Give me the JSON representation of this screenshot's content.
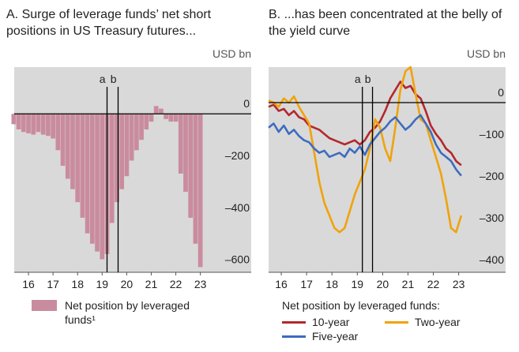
{
  "chart_data": [
    {
      "type": "bar",
      "title": "A. Surge of leverage funds’ net short positions in US Treasury futures...",
      "y_unit": "USD bn",
      "x": [
        2015.9,
        2016.1,
        2016.3,
        2016.5,
        2016.7,
        2016.9,
        2017.1,
        2017.3,
        2017.5,
        2017.7,
        2017.9,
        2018.1,
        2018.3,
        2018.5,
        2018.7,
        2018.9,
        2019.1,
        2019.3,
        2019.5,
        2019.7,
        2019.9,
        2020.1,
        2020.3,
        2020.5,
        2020.7,
        2020.9,
        2021.1,
        2021.3,
        2021.5,
        2021.7,
        2021.9,
        2022.1,
        2022.3,
        2022.5,
        2022.7,
        2022.9,
        2023.1,
        2023.3,
        2023.5
      ],
      "series": [
        {
          "name": "Net position by leveraged funds¹",
          "color": "#c98c9e",
          "values": [
            -40,
            -60,
            -70,
            -75,
            -80,
            -70,
            -80,
            -85,
            -95,
            -140,
            -200,
            -250,
            -290,
            -340,
            -400,
            -460,
            -500,
            -530,
            -560,
            -540,
            -420,
            -340,
            -290,
            -240,
            -180,
            -140,
            -100,
            -60,
            -30,
            30,
            20,
            -20,
            -30,
            -30,
            -230,
            -300,
            -400,
            -500,
            -590
          ]
        }
      ],
      "xlim": [
        2015.92,
        2025.57
      ],
      "xticks": [
        {
          "value": 2016.5,
          "label": "16"
        },
        {
          "value": 2017.5,
          "label": "17"
        },
        {
          "value": 2018.5,
          "label": "18"
        },
        {
          "value": 2019.5,
          "label": "19"
        },
        {
          "value": 2020.5,
          "label": "20"
        },
        {
          "value": 2021.5,
          "label": "21"
        },
        {
          "value": 2022.5,
          "label": "22"
        },
        {
          "value": 2023.5,
          "label": "23"
        }
      ],
      "ylim": [
        -610,
        180
      ],
      "yticks": [
        0,
        {
          "value": -200,
          "label": "–200"
        },
        {
          "value": -400,
          "label": "–400"
        },
        {
          "value": -600,
          "label": "–600"
        }
      ],
      "events": [
        {
          "label": "a",
          "x": 2019.7
        },
        {
          "label": "b",
          "x": 2020.15
        }
      ]
    },
    {
      "type": "line",
      "title": "B. ...has been concentrated at the belly of the yield curve",
      "y_unit": "USD bn",
      "legend_title": "Net position by leveraged funds:",
      "x": [
        2016.0,
        2016.2,
        2016.4,
        2016.6,
        2016.8,
        2017.0,
        2017.2,
        2017.4,
        2017.6,
        2017.8,
        2018.0,
        2018.2,
        2018.4,
        2018.6,
        2018.8,
        2019.0,
        2019.2,
        2019.4,
        2019.6,
        2019.8,
        2020.0,
        2020.2,
        2020.4,
        2020.6,
        2020.8,
        2021.0,
        2021.2,
        2021.4,
        2021.6,
        2021.8,
        2022.0,
        2022.2,
        2022.4,
        2022.6,
        2022.8,
        2023.0,
        2023.2,
        2023.4,
        2023.6
      ],
      "series": [
        {
          "name": "10-year",
          "color": "#b3282d",
          "values": [
            -10,
            -5,
            -20,
            -15,
            -30,
            -20,
            -35,
            -40,
            -55,
            -60,
            -65,
            -75,
            -85,
            -90,
            -95,
            -100,
            -95,
            -90,
            -100,
            -90,
            -70,
            -60,
            -45,
            -20,
            10,
            30,
            50,
            35,
            40,
            20,
            10,
            -20,
            -55,
            -75,
            -90,
            -110,
            -120,
            -140,
            -150
          ]
        },
        {
          "name": "Two-year",
          "color": "#f0a30a",
          "values": [
            5,
            0,
            -10,
            10,
            0,
            15,
            -10,
            -30,
            -50,
            -120,
            -190,
            -240,
            -270,
            -300,
            -310,
            -300,
            -260,
            -220,
            -190,
            -160,
            -110,
            -40,
            -60,
            -110,
            -140,
            -60,
            30,
            75,
            85,
            20,
            -40,
            -50,
            -90,
            -130,
            -170,
            -230,
            -300,
            -310,
            -270
          ]
        },
        {
          "name": "Five-year",
          "color": "#3d6cc0",
          "values": [
            -60,
            -50,
            -70,
            -55,
            -75,
            -65,
            -80,
            -90,
            -95,
            -110,
            -120,
            -115,
            -130,
            -125,
            -120,
            -130,
            -110,
            -120,
            -105,
            -125,
            -100,
            -85,
            -70,
            -60,
            -45,
            -35,
            -50,
            -65,
            -55,
            -40,
            -30,
            -50,
            -70,
            -100,
            -120,
            -130,
            -140,
            -160,
            -175
          ]
        }
      ],
      "xlim": [
        2016.0,
        2025.35
      ],
      "xticks": [
        {
          "value": 2016.5,
          "label": "16"
        },
        {
          "value": 2017.5,
          "label": "17"
        },
        {
          "value": 2018.5,
          "label": "18"
        },
        {
          "value": 2019.5,
          "label": "19"
        },
        {
          "value": 2020.5,
          "label": "20"
        },
        {
          "value": 2021.5,
          "label": "21"
        },
        {
          "value": 2022.5,
          "label": "22"
        },
        {
          "value": 2023.5,
          "label": "23"
        }
      ],
      "ylim": [
        -406,
        85
      ],
      "yticks": [
        0,
        {
          "value": -100,
          "label": "–100"
        },
        {
          "value": -200,
          "label": "–200"
        },
        {
          "value": -300,
          "label": "–300"
        },
        {
          "value": -400,
          "label": "–400"
        }
      ],
      "events": [
        {
          "label": "a",
          "x": 2019.7
        },
        {
          "label": "b",
          "x": 2020.1
        }
      ]
    }
  ]
}
